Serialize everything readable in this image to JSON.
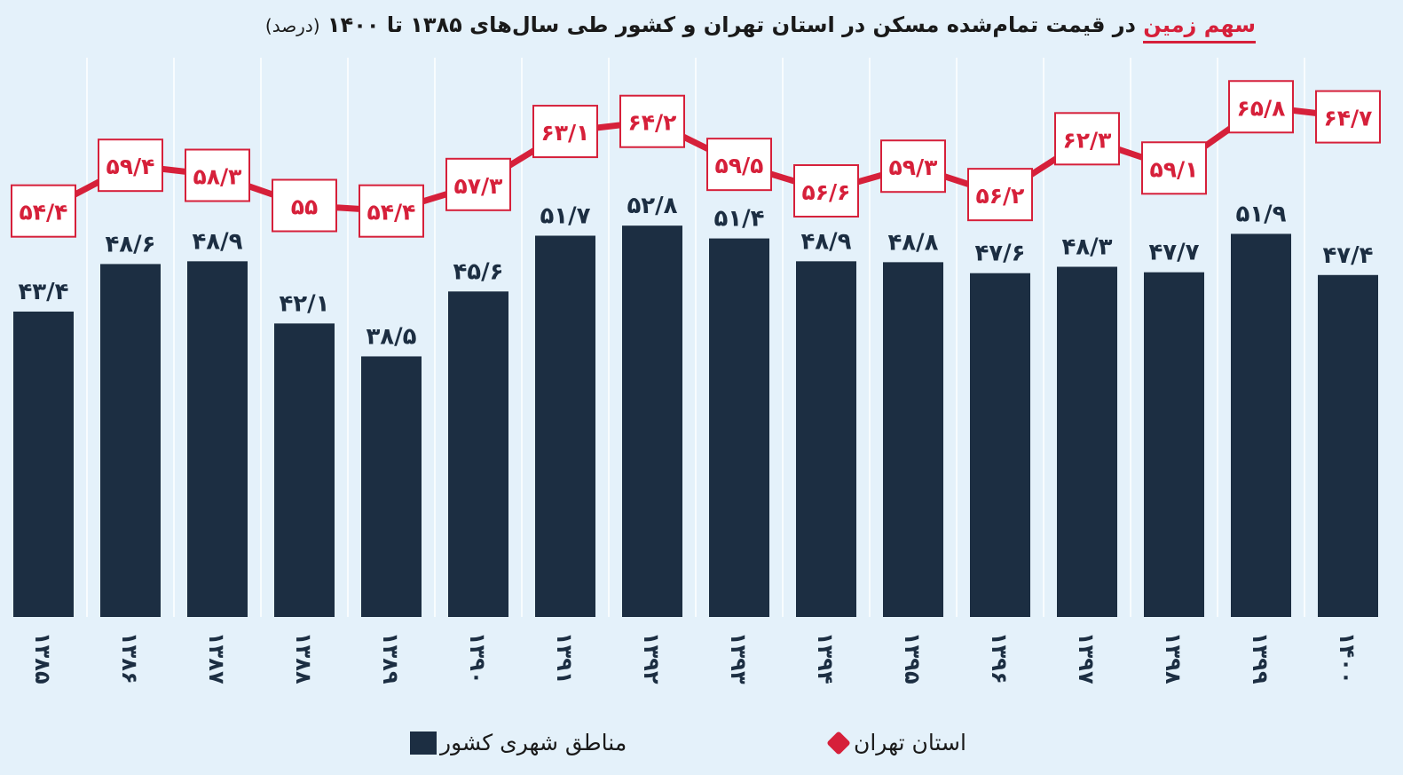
{
  "chart_data": {
    "type": "bar+line",
    "title_highlight": "سهم زمین",
    "title_rest": "در قیمت تمام‌شده مسکن در استان تهران و کشور طی سال‌های ۱۳۸۵ تا ۱۴۰۰",
    "title_unit": "(درصد)",
    "categories": [
      "۱۳۸۵",
      "۱۳۸۶",
      "۱۳۸۷",
      "۱۳۸۸",
      "۱۳۸۹",
      "۱۳۹۰",
      "۱۳۹۱",
      "۱۳۹۲",
      "۱۳۹۳",
      "۱۳۹۴",
      "۱۳۹۵",
      "۱۳۹۶",
      "۱۳۹۷",
      "۱۳۹۸",
      "۱۳۹۹",
      "۱۴۰۰"
    ],
    "series": [
      {
        "name": "مناطق شهری کشور",
        "type": "bar",
        "color": "#1c2e42",
        "values": [
          43.4,
          48.6,
          48.9,
          42.1,
          38.5,
          45.6,
          51.7,
          52.8,
          51.4,
          48.9,
          48.8,
          47.6,
          48.3,
          47.7,
          51.9,
          47.4
        ]
      },
      {
        "name": "استان تهران",
        "type": "line",
        "color": "#d6203a",
        "values": [
          54.4,
          59.4,
          58.3,
          55,
          54.4,
          57.3,
          63.1,
          64.2,
          59.5,
          56.6,
          59.3,
          56.2,
          62.3,
          59.1,
          65.8,
          64.7
        ]
      }
    ],
    "ylim": [
      10,
      70
    ],
    "grid": "vertical",
    "legend": "bottom"
  }
}
